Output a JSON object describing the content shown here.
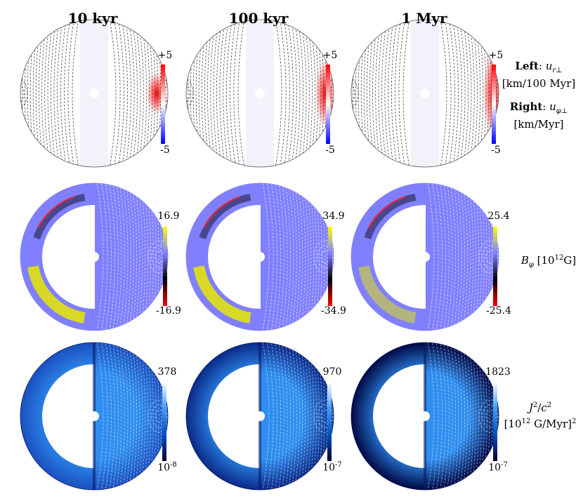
{
  "columns": [
    {
      "title": "10 kyr"
    },
    {
      "title": "100 kyr"
    },
    {
      "title": "1 Myr"
    }
  ],
  "rows": [
    {
      "quantity": "velocity",
      "colormap": [
        "#0000ff",
        "#ffffff",
        "#ff0000"
      ],
      "ticks": [
        {
          "top": "+5",
          "bottom": "-5"
        },
        {
          "top": "+5",
          "bottom": "-5"
        },
        {
          "top": "+5",
          "bottom": "-5"
        }
      ],
      "label": {
        "left_word": "Left",
        "left_symbol": "u",
        "left_sub": "r⊥",
        "left_unit": "[km/100 Myr]",
        "right_word": "Right",
        "right_symbol": "u",
        "right_sub": "φ⊥",
        "right_unit": "[km/Myr]"
      }
    },
    {
      "quantity": "B_phi",
      "colormap": [
        "#ff0000",
        "#000000",
        "#8080ff",
        "#ffff00"
      ],
      "ticks": [
        {
          "top": "16.9",
          "bottom": "-16.9"
        },
        {
          "top": "34.9",
          "bottom": "-34.9"
        },
        {
          "top": "25.4",
          "bottom": "-25.4"
        }
      ],
      "label": {
        "symbol": "B",
        "sub": "φ",
        "unit": "[10",
        "unit_exp": "12",
        "unit_end": "G]"
      }
    },
    {
      "quantity": "J2_over_c2",
      "colormap": [
        "#000033",
        "#0050c0",
        "#3fa0ff",
        "#ffffff"
      ],
      "ticks": [
        {
          "top": "378",
          "bottom": "10",
          "bottom_exp": "-8"
        },
        {
          "top": "970",
          "bottom": "10",
          "bottom_exp": "-7"
        },
        {
          "top": "1823",
          "bottom": "10",
          "bottom_exp": "-7"
        }
      ],
      "label": {
        "symbol_a": "J",
        "exp_a": "2",
        "slash": "/",
        "symbol_b": "c",
        "exp_b": "2",
        "unit": "[10",
        "unit_exp": "12",
        "unit_end": " G/Myr]",
        "unit_sq": "2"
      }
    }
  ]
}
